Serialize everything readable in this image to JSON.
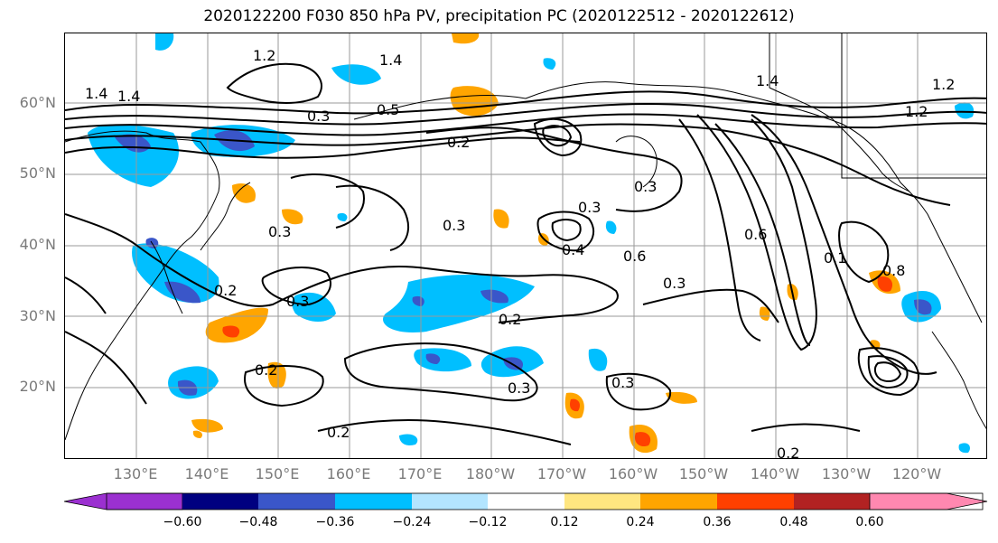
{
  "title": "2020122200 F030 850 hPa PV, precipitation PC (2020122512 - 2020122612)",
  "lat_labels": [
    "60°N",
    "50°N",
    "40°N",
    "30°N",
    "20°N"
  ],
  "lon_labels": [
    "130°E",
    "140°E",
    "150°E",
    "160°E",
    "170°E",
    "180°W",
    "170°W",
    "160°W",
    "150°W",
    "140°W",
    "130°W",
    "120°W"
  ],
  "contour_labels": [
    "1.2",
    "1.4",
    "1.4",
    "1.4",
    "0.3",
    "0.5",
    "0.2",
    "0.3",
    "0.3",
    "0.3",
    "0.4",
    "0.2",
    "0.3",
    "0.2",
    "0.2",
    "0.3",
    "0.3",
    "0.2",
    "0.2",
    "0.3",
    "0.6",
    "0.6",
    "0.3",
    "1.4",
    "1.2",
    "1.2",
    "0.8",
    "0.1"
  ],
  "colorbar": {
    "tick_labels": [
      "−0.60",
      "−0.48",
      "−0.36",
      "−0.24",
      "−0.12",
      "0.12",
      "0.24",
      "0.36",
      "0.48",
      "0.60"
    ],
    "colors": [
      "#9b30d0",
      "#000080",
      "#3a56c9",
      "#00bfff",
      "#b3e5ff",
      "#ffffff",
      "#ffe680",
      "#ffa500",
      "#ff4000",
      "#b22222",
      "#ff88b0"
    ]
  }
}
